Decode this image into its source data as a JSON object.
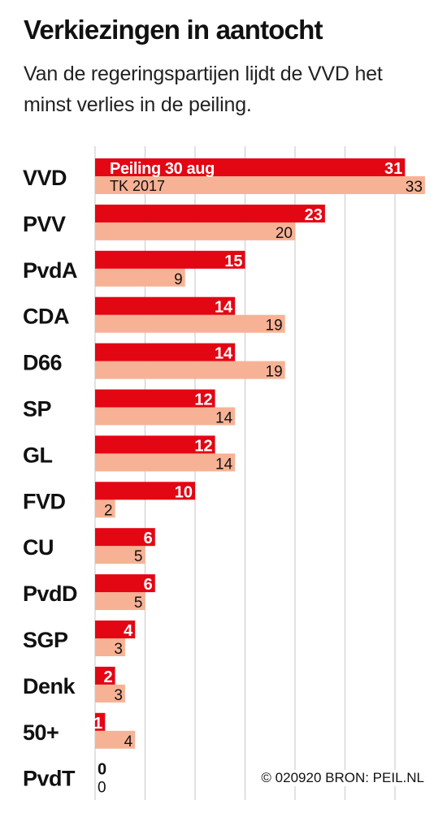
{
  "title": "Verkiezingen in aantocht",
  "subtitle": "Van de regeringspartijen lijdt de VVD het minst verlies in de peiling.",
  "source": "© 020920 BRON: PEIL.NL",
  "colors": {
    "poll": "#e30613",
    "result": "#f7b295",
    "grid": "#cfcfcf",
    "text": "#111111"
  },
  "chart_data": {
    "type": "bar",
    "orientation": "horizontal",
    "categories": [
      "VVD",
      "PVV",
      "PvdA",
      "CDA",
      "D66",
      "SP",
      "GL",
      "FVD",
      "CU",
      "PvdD",
      "SGP",
      "Denk",
      "50+",
      "PvdT"
    ],
    "series": [
      {
        "name": "Peiling 30 aug",
        "values": [
          31,
          23,
          15,
          14,
          14,
          12,
          12,
          10,
          6,
          6,
          4,
          2,
          1,
          0
        ]
      },
      {
        "name": "TK 2017",
        "values": [
          33,
          20,
          9,
          19,
          19,
          14,
          14,
          2,
          5,
          5,
          3,
          3,
          4,
          0
        ]
      }
    ],
    "xlim": [
      0,
      33
    ],
    "grid": true
  }
}
